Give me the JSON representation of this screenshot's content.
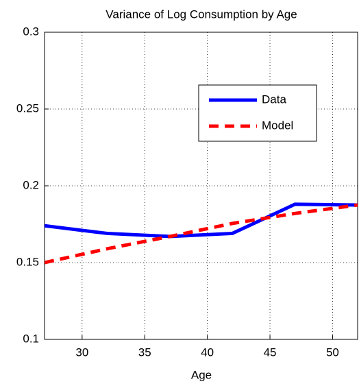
{
  "chart_data": {
    "type": "line",
    "title": "Variance of Log Consumption by Age",
    "x_label": "Age",
    "x": [
      27,
      32,
      37,
      42,
      47,
      52
    ],
    "series": [
      {
        "name": "Data",
        "color": "#0000ff",
        "dash": "solid",
        "values": [
          0.174,
          0.169,
          0.167,
          0.169,
          0.188,
          0.1875
        ]
      },
      {
        "name": "Model",
        "color": "#ff0000",
        "dash": "dashed",
        "values": [
          0.15,
          0.159,
          0.167,
          0.1755,
          0.182,
          0.1875
        ]
      }
    ],
    "xlim": [
      27,
      52
    ],
    "xticks": [
      30,
      35,
      40,
      45,
      50
    ],
    "ylim": [
      0.1,
      0.3
    ],
    "yticks": [
      0.1,
      0.15,
      0.2,
      0.25,
      0.3
    ],
    "grid": true,
    "legend": "upper right"
  }
}
